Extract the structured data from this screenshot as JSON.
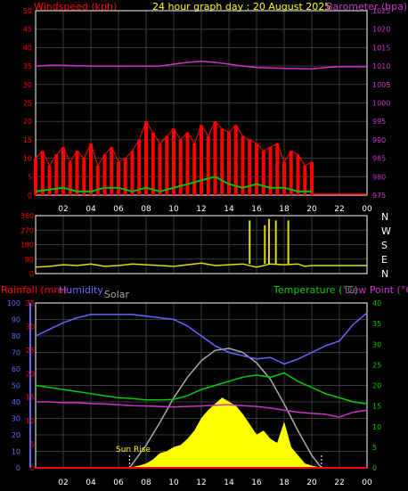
{
  "chart_data": [
    {
      "type": "line",
      "title": "24 hour graph day : 20 August 2025",
      "left_label": "Windspeed (kph)",
      "right_label": "Barometer (hpa)",
      "x_ticks": [
        "02",
        "04",
        "06",
        "08",
        "10",
        "12",
        "14",
        "16",
        "18",
        "20",
        "22",
        "00"
      ],
      "x_range_hours": [
        0,
        24
      ],
      "y_left": {
        "ticks": [
          0,
          5,
          10,
          15,
          20,
          25,
          30,
          35,
          40,
          45,
          50
        ],
        "range": [
          0,
          50
        ]
      },
      "y_right": {
        "ticks": [
          975,
          980,
          985,
          990,
          995,
          1000,
          1005,
          1010,
          1015,
          1020,
          1025
        ],
        "range": [
          975,
          1025
        ]
      },
      "grid": true,
      "colors": {
        "wind_gust": "#ff0000",
        "wind_avg": "#00c000",
        "barometer": "#cc33cc",
        "frame": "#ffffff",
        "left_axis": "#ff0000",
        "right_axis": "#cc33cc",
        "title": "#ffff00"
      },
      "series": [
        {
          "name": "Barometer (hpa)",
          "axis": "right",
          "x": [
            0,
            1,
            2,
            3,
            4,
            5,
            6,
            7,
            8,
            9,
            10,
            11,
            12,
            13,
            14,
            15,
            16,
            17,
            18,
            19,
            20,
            21,
            22,
            23,
            24
          ],
          "y": [
            1010,
            1010.2,
            1010.2,
            1010.1,
            1010,
            1010,
            1010,
            1010,
            1010,
            1010,
            1010.5,
            1011,
            1011.3,
            1011,
            1010.5,
            1010,
            1009.6,
            1009.5,
            1009.4,
            1009.3,
            1009.2,
            1009.6,
            1009.8,
            1009.8,
            1009.8
          ]
        },
        {
          "name": "Windspeed gust (kph)",
          "axis": "left",
          "x": [
            0,
            0.5,
            1,
            1.5,
            2,
            2.5,
            3,
            3.5,
            4,
            4.5,
            5,
            5.5,
            6,
            6.5,
            7,
            7.5,
            8,
            8.5,
            9,
            9.5,
            10,
            10.5,
            11,
            11.5,
            12,
            12.5,
            13,
            13.5,
            14,
            14.5,
            15,
            15.5,
            16,
            16.5,
            17,
            17.5,
            18,
            18.5,
            19,
            19.5,
            20
          ],
          "y": [
            10,
            12,
            8,
            11,
            13,
            9,
            12,
            10,
            14,
            8,
            11,
            13,
            9,
            10,
            12,
            15,
            20,
            17,
            14,
            16,
            18,
            15,
            17,
            14,
            19,
            16,
            20,
            18,
            17,
            19,
            16,
            15,
            14,
            12,
            13,
            14,
            9,
            12,
            11,
            8,
            9
          ]
        },
        {
          "name": "Windspeed average (kph)",
          "axis": "left",
          "x": [
            0,
            1,
            2,
            3,
            4,
            5,
            6,
            7,
            8,
            9,
            10,
            11,
            12,
            13,
            14,
            15,
            16,
            17,
            18,
            19,
            20
          ],
          "y": [
            1,
            1.5,
            2,
            1,
            1,
            2,
            2,
            1,
            2,
            1,
            2,
            3,
            4,
            5,
            3,
            2,
            3,
            2,
            2,
            1,
            1
          ]
        }
      ]
    },
    {
      "type": "line",
      "right_label_lines": [
        "N",
        "W",
        "S",
        "E",
        "N"
      ],
      "x_ticks": [
        "02",
        "04",
        "06",
        "08",
        "10",
        "12",
        "14",
        "16",
        "18",
        "20",
        "22",
        "00"
      ],
      "x_range_hours": [
        0,
        24
      ],
      "y_left": {
        "ticks": [
          0,
          90,
          180,
          270,
          360
        ],
        "range": [
          0,
          360
        ]
      },
      "grid": true,
      "colors": {
        "direction": "#e0e000",
        "frame": "#ffffff",
        "label": "#ff0000",
        "compass": "#ffffff"
      },
      "series": [
        {
          "name": "Wind direction (deg)",
          "x": [
            0,
            1,
            2,
            3,
            4,
            5,
            6,
            7,
            8,
            9,
            10,
            11,
            12,
            13,
            14,
            15,
            15.5,
            16,
            16.6,
            16.9,
            17,
            17.4,
            18,
            18.3,
            19,
            19.5,
            20,
            21,
            22,
            23,
            24
          ],
          "y": [
            40,
            45,
            55,
            50,
            60,
            45,
            50,
            60,
            55,
            50,
            45,
            55,
            65,
            50,
            55,
            60,
            330,
            40,
            300,
            340,
            60,
            330,
            55,
            330,
            60,
            45,
            50,
            50,
            50,
            50,
            50
          ]
        }
      ]
    },
    {
      "type": "line",
      "labels": {
        "rainfall": "Rainfall (mm)",
        "humidity": "Humidity",
        "solar": "Solar",
        "temperature": "Temperature (°C)",
        "dewpoint": "Dew Point (°C)",
        "sunrise": "Sun Rise"
      },
      "x_ticks": [
        "02",
        "04",
        "06",
        "08",
        "10",
        "12",
        "14",
        "16",
        "18",
        "20",
        "22",
        "00"
      ],
      "x_range_hours": [
        0,
        24
      ],
      "y_humidity": {
        "ticks": [
          0,
          10,
          20,
          30,
          40,
          50,
          60,
          70,
          80,
          90,
          100
        ],
        "range": [
          0,
          100
        ]
      },
      "y_rain": {
        "ticks": [
          0,
          5,
          10,
          15,
          20,
          25,
          30,
          35
        ],
        "range": [
          0,
          35
        ]
      },
      "y_temp": {
        "ticks": [
          0,
          5,
          10,
          15,
          20,
          25,
          30,
          35,
          40
        ],
        "range": [
          0,
          40
        ]
      },
      "grid": true,
      "colors": {
        "humidity": "#6666ff",
        "temperature": "#00cc00",
        "dewpoint": "#cc33cc",
        "solar": "#ffff00",
        "solar_max": "#aaaaaa",
        "rainfall": "#ff0000",
        "rain_axis": "#ff0000",
        "temp_axis": "#00cc00",
        "dew_label": "#cc33cc"
      },
      "sunrise_hour": 6.8,
      "sunset_hour": 20.7,
      "series": [
        {
          "name": "Humidity (%)",
          "axis": "humidity",
          "x": [
            0,
            1,
            2,
            3,
            4,
            5,
            6,
            7,
            8,
            9,
            10,
            11,
            12,
            13,
            14,
            15,
            16,
            17,
            18,
            19,
            20,
            21,
            22,
            23,
            24
          ],
          "y": [
            80,
            84,
            88,
            91,
            93,
            93,
            93,
            93,
            92,
            91,
            90,
            86,
            80,
            74,
            70,
            68,
            66,
            67,
            63,
            66,
            70,
            74,
            77,
            87,
            94
          ]
        },
        {
          "name": "Temperature (°C)",
          "axis": "temp",
          "x": [
            0,
            1,
            2,
            3,
            4,
            5,
            6,
            7,
            8,
            9,
            10,
            11,
            12,
            13,
            14,
            15,
            16,
            17,
            18,
            19,
            20,
            21,
            22,
            23,
            24
          ],
          "y": [
            20,
            19.5,
            19,
            18.5,
            18,
            17.5,
            17,
            16.8,
            16.5,
            16.5,
            16.6,
            17.5,
            19,
            20,
            21,
            22,
            22.5,
            22,
            23,
            21,
            19.5,
            18,
            17,
            16,
            15.5
          ]
        },
        {
          "name": "Dew Point (°C)",
          "axis": "temp",
          "x": [
            0,
            1,
            2,
            3,
            4,
            5,
            6,
            7,
            8,
            9,
            10,
            11,
            12,
            13,
            14,
            15,
            16,
            17,
            18,
            19,
            20,
            21,
            22,
            23,
            24
          ],
          "y": [
            16,
            16,
            15.8,
            15.8,
            15.6,
            15.5,
            15.3,
            15.1,
            15,
            14.9,
            14.8,
            14.9,
            15,
            15.2,
            15.3,
            15.1,
            14.9,
            14.5,
            14,
            13.5,
            13.2,
            13,
            12.3,
            13.5,
            14
          ]
        },
        {
          "name": "Solar max",
          "axis": "temp",
          "x": [
            6.8,
            8,
            9,
            10,
            11,
            12,
            13,
            14,
            15,
            16,
            17,
            18,
            19,
            20,
            20.7
          ],
          "y": [
            0,
            5.5,
            11,
            17,
            22,
            26,
            28.5,
            29,
            28,
            25.5,
            21.5,
            15.5,
            9,
            3,
            0
          ]
        },
        {
          "name": "Solar",
          "axis": "temp",
          "x": [
            6.8,
            7.5,
            8,
            8.5,
            9,
            9.5,
            10,
            10.5,
            11,
            11.5,
            12,
            12.5,
            13,
            13.5,
            14,
            14.5,
            15,
            15.5,
            16,
            16.5,
            17,
            17.5,
            18,
            18.5,
            19,
            19.5,
            20,
            20.7
          ],
          "y": [
            0,
            0.5,
            1,
            2,
            3.5,
            4,
            5,
            5.5,
            7,
            9,
            12,
            14,
            15.5,
            17,
            16,
            15,
            13,
            10.5,
            8,
            9,
            7,
            6,
            11,
            5,
            3,
            1,
            0.5,
            0
          ]
        },
        {
          "name": "Rainfall (mm)",
          "axis": "rain",
          "x": [
            0,
            24
          ],
          "y": [
            0,
            0
          ]
        }
      ]
    }
  ]
}
